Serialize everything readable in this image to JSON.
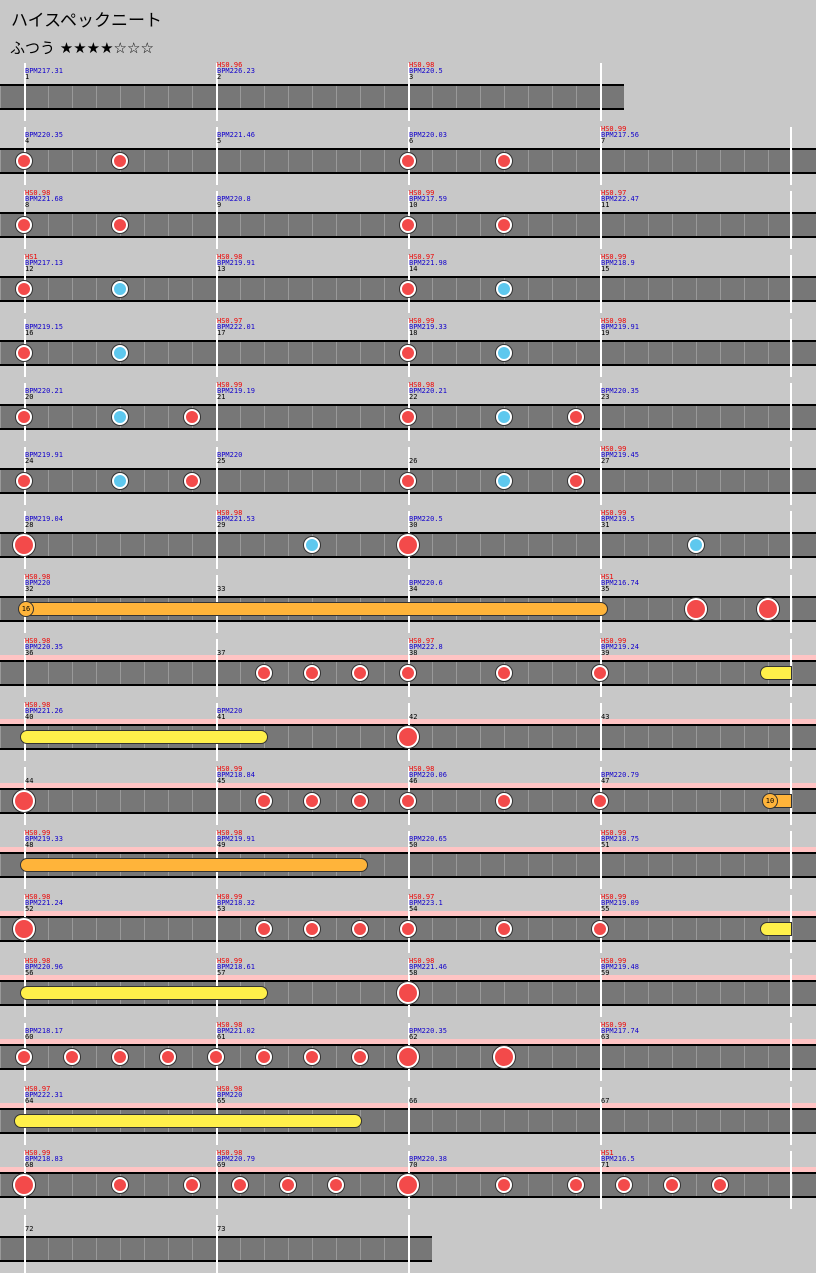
{
  "title": "ハイスペックニート",
  "difficulty": "ふつう ★★★★☆☆☆",
  "colors": {
    "background": "#c8c8c8",
    "lane": "#777777",
    "gogo_band": "#ffc4c4",
    "don": "#f34a4a",
    "ka": "#5ec8ee",
    "roll": "#fff04a",
    "balloon": "#ffb43a",
    "hs_text": "#ee0000",
    "bpm_text": "#1100cc"
  },
  "rows": [
    {
      "measures": [
        {
          "n": "1",
          "bpm": "BPM217.31"
        },
        {
          "n": "2",
          "hs": "HS0.96",
          "bpm": "BPM226.23"
        },
        {
          "n": "3",
          "hs": "HS0.98",
          "bpm": "BPM220.5"
        }
      ],
      "end": 624,
      "notes": []
    },
    {
      "measures": [
        {
          "n": "4",
          "bpm": "BPM220.35"
        },
        {
          "n": "5",
          "bpm": "BPM221.46"
        },
        {
          "n": "6",
          "bpm": "BPM220.03"
        },
        {
          "n": "7",
          "hs": "HS0.99",
          "bpm": "BPM217.56"
        }
      ],
      "notes": [
        [
          "don",
          24
        ],
        [
          "don",
          120
        ],
        [
          "don",
          408
        ],
        [
          "don",
          504
        ]
      ]
    },
    {
      "measures": [
        {
          "n": "8",
          "hs": "HS0.98",
          "bpm": "BPM221.68"
        },
        {
          "n": "9",
          "bpm": "BPM220.8"
        },
        {
          "n": "10",
          "hs": "HS0.99",
          "bpm": "BPM217.59"
        },
        {
          "n": "11",
          "hs": "HS0.97",
          "bpm": "BPM222.47"
        }
      ],
      "notes": [
        [
          "don",
          24
        ],
        [
          "don",
          120
        ],
        [
          "don",
          408
        ],
        [
          "don",
          504
        ]
      ]
    },
    {
      "measures": [
        {
          "n": "12",
          "hs": "HS1",
          "bpm": "BPM217.13"
        },
        {
          "n": "13",
          "hs": "HS0.98",
          "bpm": "BPM219.91"
        },
        {
          "n": "14",
          "hs": "HS0.97",
          "bpm": "BPM221.98"
        },
        {
          "n": "15",
          "hs": "HS0.99",
          "bpm": "BPM218.9"
        }
      ],
      "notes": [
        [
          "don",
          24
        ],
        [
          "ka",
          120
        ],
        [
          "don",
          408
        ],
        [
          "ka",
          504
        ]
      ]
    },
    {
      "measures": [
        {
          "n": "16",
          "bpm": "BPM219.15"
        },
        {
          "n": "17",
          "hs": "HS0.97",
          "bpm": "BPM222.01"
        },
        {
          "n": "18",
          "hs": "HS0.99",
          "bpm": "BPM219.33"
        },
        {
          "n": "19",
          "hs": "HS0.98",
          "bpm": "BPM219.91"
        }
      ],
      "notes": [
        [
          "don",
          24
        ],
        [
          "ka",
          120
        ],
        [
          "don",
          408
        ],
        [
          "ka",
          504
        ]
      ]
    },
    {
      "measures": [
        {
          "n": "20",
          "bpm": "BPM220.21"
        },
        {
          "n": "21",
          "hs": "HS0.99",
          "bpm": "BPM219.19"
        },
        {
          "n": "22",
          "hs": "HS0.98",
          "bpm": "BPM220.21"
        },
        {
          "n": "23",
          "bpm": "BPM220.35"
        }
      ],
      "notes": [
        [
          "don",
          24
        ],
        [
          "ka",
          120
        ],
        [
          "don",
          192
        ],
        [
          "don",
          408
        ],
        [
          "ka",
          504
        ],
        [
          "don",
          576
        ]
      ]
    },
    {
      "measures": [
        {
          "n": "24",
          "bpm": "BPM219.91"
        },
        {
          "n": "25",
          "bpm": "BPM220"
        },
        {
          "n": "26"
        },
        {
          "n": "27",
          "hs": "HS0.99",
          "bpm": "BPM219.45"
        }
      ],
      "notes": [
        [
          "don",
          24
        ],
        [
          "ka",
          120
        ],
        [
          "don",
          192
        ],
        [
          "don",
          408
        ],
        [
          "ka",
          504
        ],
        [
          "don",
          576
        ]
      ]
    },
    {
      "measures": [
        {
          "n": "28",
          "bpm": "BPM219.04"
        },
        {
          "n": "29",
          "hs": "HS0.98",
          "bpm": "BPM221.53"
        },
        {
          "n": "30",
          "bpm": "BPM220.5"
        },
        {
          "n": "31",
          "hs": "HS0.99",
          "bpm": "BPM219.5"
        }
      ],
      "notes": [
        [
          "DON",
          24
        ],
        [
          "ka",
          312
        ],
        [
          "DON",
          408
        ],
        [
          "ka",
          696
        ]
      ]
    },
    {
      "measures": [
        {
          "n": "32",
          "hs": "HS0.98",
          "bpm": "BPM220"
        },
        {
          "n": "33"
        },
        {
          "n": "34",
          "bpm": "BPM220.6"
        },
        {
          "n": "35",
          "hs": "HS1",
          "bpm": "BPM216.74"
        }
      ],
      "notes": [
        [
          "DON",
          696
        ],
        [
          "DON",
          768
        ]
      ],
      "rolls": [
        [
          "orange",
          24,
          608
        ]
      ],
      "balloons": [
        [
          16,
          "16"
        ]
      ]
    },
    {
      "gogo": true,
      "measures": [
        {
          "n": "36",
          "hs": "HS0.98",
          "bpm": "BPM220.35"
        },
        {
          "n": "37"
        },
        {
          "n": "38",
          "hs": "HS0.97",
          "bpm": "BPM222.8"
        },
        {
          "n": "39",
          "hs": "HS0.99",
          "bpm": "BPM219.24"
        }
      ],
      "notes": [
        [
          "don",
          264
        ],
        [
          "don",
          312
        ],
        [
          "don",
          360
        ],
        [
          "don",
          408
        ],
        [
          "don",
          504
        ],
        [
          "don",
          600
        ]
      ],
      "rolls": [
        [
          "yellow",
          760,
          800
        ]
      ]
    },
    {
      "gogo": true,
      "measures": [
        {
          "n": "40",
          "hs": "HS0.98",
          "bpm": "BPM221.26"
        },
        {
          "n": "41",
          "bpm": "BPM220"
        },
        {
          "n": "42"
        },
        {
          "n": "43"
        }
      ],
      "notes": [
        [
          "DON",
          408
        ]
      ],
      "rolls": [
        [
          "yellow",
          20,
          268
        ]
      ]
    },
    {
      "gogo": true,
      "measures": [
        {
          "n": "44"
        },
        {
          "n": "45",
          "hs": "HS0.99",
          "bpm": "BPM218.84"
        },
        {
          "n": "46",
          "hs": "HS0.98",
          "bpm": "BPM220.06"
        },
        {
          "n": "47",
          "bpm": "BPM220.79"
        }
      ],
      "notes": [
        [
          "DON",
          24
        ],
        [
          "don",
          264
        ],
        [
          "don",
          312
        ],
        [
          "don",
          360
        ],
        [
          "don",
          408
        ],
        [
          "don",
          504
        ],
        [
          "don",
          600
        ]
      ],
      "rolls": [
        [
          "orange",
          762,
          800
        ]
      ],
      "balloons": [
        [
          760,
          "10"
        ]
      ]
    },
    {
      "gogo": true,
      "measures": [
        {
          "n": "48",
          "hs": "HS0.99",
          "bpm": "BPM219.33"
        },
        {
          "n": "49",
          "hs": "HS0.98",
          "bpm": "BPM219.91"
        },
        {
          "n": "50",
          "bpm": "BPM220.65"
        },
        {
          "n": "51",
          "hs": "HS0.99",
          "bpm": "BPM218.75"
        }
      ],
      "notes": [],
      "rolls": [
        [
          "orange",
          20,
          368
        ]
      ]
    },
    {
      "gogo": true,
      "measures": [
        {
          "n": "52",
          "hs": "HS0.98",
          "bpm": "BPM221.24"
        },
        {
          "n": "53",
          "hs": "HS0.99",
          "bpm": "BPM218.32"
        },
        {
          "n": "54",
          "hs": "HS0.97",
          "bpm": "BPM223.1"
        },
        {
          "n": "55",
          "hs": "HS0.99",
          "bpm": "BPM219.09"
        }
      ],
      "notes": [
        [
          "DON",
          24
        ],
        [
          "don",
          264
        ],
        [
          "don",
          312
        ],
        [
          "don",
          360
        ],
        [
          "don",
          408
        ],
        [
          "don",
          504
        ],
        [
          "don",
          600
        ]
      ],
      "rolls": [
        [
          "yellow",
          760,
          800
        ]
      ]
    },
    {
      "gogo": true,
      "measures": [
        {
          "n": "56",
          "hs": "HS0.98",
          "bpm": "BPM220.96"
        },
        {
          "n": "57",
          "hs": "HS0.99",
          "bpm": "BPM218.61"
        },
        {
          "n": "58",
          "hs": "HS0.98",
          "bpm": "BPM221.46"
        },
        {
          "n": "59",
          "hs": "HS0.99",
          "bpm": "BPM219.48"
        }
      ],
      "notes": [
        [
          "DON",
          408
        ]
      ],
      "rolls": [
        [
          "yellow",
          20,
          268
        ]
      ]
    },
    {
      "gogo": true,
      "measures": [
        {
          "n": "60",
          "bpm": "BPM218.17"
        },
        {
          "n": "61",
          "hs": "HS0.98",
          "bpm": "BPM221.02"
        },
        {
          "n": "62",
          "bpm": "BPM220.35"
        },
        {
          "n": "63",
          "hs": "HS0.99",
          "bpm": "BPM217.74"
        }
      ],
      "notes": [
        [
          "don",
          24
        ],
        [
          "don",
          72
        ],
        [
          "don",
          120
        ],
        [
          "don",
          168
        ],
        [
          "don",
          216
        ],
        [
          "don",
          264
        ],
        [
          "don",
          312
        ],
        [
          "don",
          360
        ],
        [
          "DON",
          408
        ],
        [
          "DON",
          504
        ]
      ]
    },
    {
      "gogo": true,
      "measures": [
        {
          "n": "64",
          "hs": "HS0.97",
          "bpm": "BPM222.31"
        },
        {
          "n": "65",
          "hs": "HS0.98",
          "bpm": "BPM220"
        },
        {
          "n": "66"
        },
        {
          "n": "67"
        }
      ],
      "notes": [],
      "rolls": [
        [
          "yellow",
          14,
          362
        ]
      ]
    },
    {
      "gogo": true,
      "measures": [
        {
          "n": "68",
          "hs": "HS0.99",
          "bpm": "BPM218.83"
        },
        {
          "n": "69",
          "hs": "HS0.98",
          "bpm": "BPM220.79"
        },
        {
          "n": "70",
          "bpm": "BPM220.38"
        },
        {
          "n": "71",
          "hs": "HS1",
          "bpm": "BPM216.5"
        }
      ],
      "notes": [
        [
          "DON",
          24
        ],
        [
          "don",
          120
        ],
        [
          "don",
          192
        ],
        [
          "don",
          240
        ],
        [
          "don",
          288
        ],
        [
          "don",
          336
        ],
        [
          "DON",
          408
        ],
        [
          "don",
          504
        ],
        [
          "don",
          576
        ],
        [
          "don",
          624
        ],
        [
          "don",
          672
        ],
        [
          "don",
          720
        ]
      ]
    },
    {
      "measures": [
        {
          "n": "72"
        },
        {
          "n": "73"
        }
      ],
      "end": 432,
      "notes": []
    }
  ]
}
